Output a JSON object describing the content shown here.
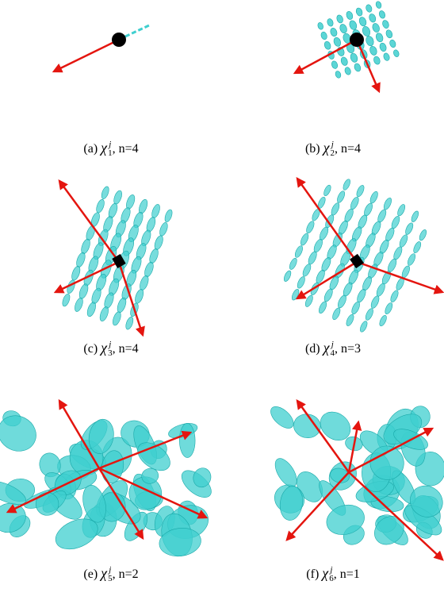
{
  "figure": {
    "panels": [
      {
        "label": "(a)",
        "symbol": "χ",
        "superscript": "j",
        "subscript": "1",
        "suffix": ", n=4"
      },
      {
        "label": "(b)",
        "symbol": "χ",
        "superscript": "j",
        "subscript": "2",
        "suffix": ", n=4"
      },
      {
        "label": "(c)",
        "symbol": "χ",
        "superscript": "j",
        "subscript": "3",
        "suffix": ", n=4"
      },
      {
        "label": "(d)",
        "symbol": "χ",
        "superscript": "j",
        "subscript": "4",
        "suffix": ", n=3"
      },
      {
        "label": "(e)",
        "symbol": "χ",
        "superscript": "j",
        "subscript": "5",
        "suffix": ", n=2"
      },
      {
        "label": "(f)",
        "symbol": "χ",
        "superscript": "j",
        "subscript": "6",
        "suffix": ", n=1"
      }
    ]
  }
}
